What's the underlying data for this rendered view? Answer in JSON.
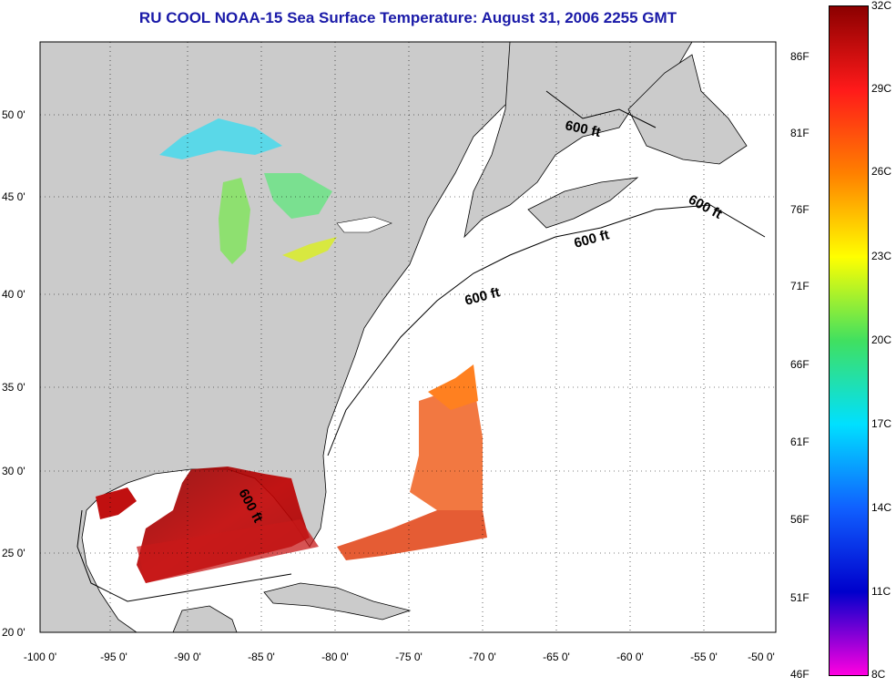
{
  "title": "RU COOL  NOAA-15  Sea Surface Temperature:  August 31, 2006 2255 GMT",
  "x_ticks": [
    "-100 0'",
    "-95 0'",
    "-90 0'",
    "-85 0'",
    "-80 0'",
    "-75 0'",
    "-70 0'",
    "-65 0'",
    "-60 0'",
    "-55 0'",
    "-50 0'"
  ],
  "y_ticks": [
    "50 0'",
    "45 0'",
    "40 0'",
    "35 0'",
    "30 0'",
    "25 0'",
    "20 0'"
  ],
  "colorbar": {
    "fahrenheit": [
      "86F",
      "81F",
      "76F",
      "71F",
      "66F",
      "61F",
      "56F",
      "51F",
      "46F"
    ],
    "celsius": [
      "32C",
      "29C",
      "26C",
      "23C",
      "20C",
      "17C",
      "14C",
      "11C",
      "8C"
    ],
    "colors": [
      "#8b0000",
      "#ff1a1a",
      "#ff8000",
      "#ffff00",
      "#40e060",
      "#00e0ff",
      "#1060ff",
      "#0000cc",
      "#ff00e0"
    ]
  },
  "contour_labels": [
    "600 ft",
    "600 ft",
    "600 ft",
    "600 ft",
    "600 ft"
  ],
  "colors": {
    "land": "#cbcbcb",
    "ocean": "#ffffff",
    "title": "#1a1aa8"
  }
}
